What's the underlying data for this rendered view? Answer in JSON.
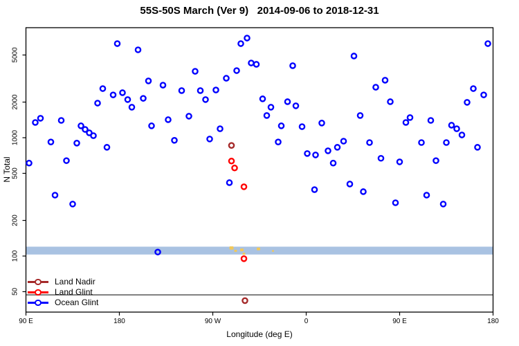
{
  "title": "55S-50S March (Ver 9)   2014-09-06 to 2018-12-31",
  "x_axis": {
    "title": "Longitude (deg E)",
    "tick_labels": [
      "90 E",
      "180",
      "90 W",
      "0",
      "90 E",
      "180"
    ],
    "tick_values_deg": [
      90,
      180,
      270,
      360,
      450,
      540
    ],
    "range_deg": [
      90,
      540
    ]
  },
  "y_axis": {
    "title": "N Total",
    "scale": "log",
    "tick_labels": [
      "50",
      "100",
      "200",
      "500",
      "1000",
      "2000",
      "5000"
    ],
    "tick_values": [
      50,
      100,
      200,
      500,
      1000,
      2000,
      5000
    ]
  },
  "legend": {
    "items": [
      {
        "label": "Land Nadir",
        "color": "#A52A2A"
      },
      {
        "label": "Land Glint",
        "color": "#FF0000"
      },
      {
        "label": "Ocean Glint",
        "color": "#0000FF"
      }
    ]
  },
  "chart_data": {
    "type": "scatter",
    "title": "55S-50S March (Ver 9)   2014-09-06 to 2018-12-31",
    "xlabel": "Longitude (deg E)",
    "ylabel": "N Total",
    "x_units": "degrees east along axis, 90 through 540 (wraps 180/90W/0/90E/180)",
    "y_log_scale": true,
    "band": {
      "n_range": [
        103,
        120
      ],
      "color": "#A9C2E2"
    },
    "threshold_line": {
      "n": 47,
      "color": "#7d7d7d"
    },
    "yellow_marks_color": "#F0C85C",
    "yellow_marks": [
      {
        "lon": 288,
        "n": 116,
        "size": 6
      },
      {
        "lon": 292,
        "n": 110,
        "size": 4
      },
      {
        "lon": 298,
        "n": 112,
        "size": 5
      },
      {
        "lon": 300,
        "n": 104,
        "size": 4
      },
      {
        "lon": 314,
        "n": 114,
        "size": 5
      },
      {
        "lon": 328,
        "n": 110,
        "size": 3
      }
    ],
    "series": [
      {
        "name": "Land Nadir",
        "color": "#A52A2A",
        "points": [
          [
            288,
            860
          ],
          [
            301,
            42
          ]
        ]
      },
      {
        "name": "Land Glint",
        "color": "#FF0000",
        "points": [
          [
            288,
            635
          ],
          [
            291,
            555
          ],
          [
            300,
            385
          ],
          [
            300,
            95
          ]
        ]
      },
      {
        "name": "Ocean Glint",
        "color": "#0000FF",
        "points": [
          [
            178,
            6240
          ],
          [
            198,
            5530
          ],
          [
            208,
            3020
          ],
          [
            222,
            2780
          ],
          [
            240,
            2500
          ],
          [
            164,
            2600
          ],
          [
            174,
            2300
          ],
          [
            183,
            2400
          ],
          [
            188,
            2100
          ],
          [
            192,
            1810
          ],
          [
            203,
            2150
          ],
          [
            159,
            1960
          ],
          [
            99,
            1345
          ],
          [
            104,
            1460
          ],
          [
            124,
            1400
          ],
          [
            143,
            1260
          ],
          [
            147,
            1175
          ],
          [
            151,
            1100
          ],
          [
            155,
            1040
          ],
          [
            211,
            1260
          ],
          [
            227,
            1420
          ],
          [
            114,
            920
          ],
          [
            139,
            900
          ],
          [
            168,
            830
          ],
          [
            233,
            950
          ],
          [
            129,
            640
          ],
          [
            93,
            610
          ],
          [
            303,
            6950
          ],
          [
            297,
            6240
          ],
          [
            307,
            4280
          ],
          [
            312,
            4170
          ],
          [
            347,
            4060
          ],
          [
            253,
            3640
          ],
          [
            293,
            3690
          ],
          [
            283,
            3180
          ],
          [
            258,
            2500
          ],
          [
            273,
            2530
          ],
          [
            263,
            2100
          ],
          [
            318,
            2130
          ],
          [
            326,
            1810
          ],
          [
            342,
            2015
          ],
          [
            350,
            1860
          ],
          [
            322,
            1540
          ],
          [
            247,
            1520
          ],
          [
            375,
            1330
          ],
          [
            336,
            1260
          ],
          [
            356,
            1240
          ],
          [
            277,
            1190
          ],
          [
            267,
            975
          ],
          [
            333,
            920
          ],
          [
            361,
            735
          ],
          [
            369,
            715
          ],
          [
            381,
            775
          ],
          [
            390,
            830
          ],
          [
            386,
            610
          ],
          [
            535,
            6240
          ],
          [
            406,
            4900
          ],
          [
            436,
            3060
          ],
          [
            427,
            2670
          ],
          [
            521,
            2600
          ],
          [
            531,
            2300
          ],
          [
            515,
            1990
          ],
          [
            441,
            2015
          ],
          [
            412,
            1540
          ],
          [
            460,
            1480
          ],
          [
            456,
            1345
          ],
          [
            480,
            1400
          ],
          [
            500,
            1275
          ],
          [
            505,
            1190
          ],
          [
            510,
            1055
          ],
          [
            396,
            935
          ],
          [
            421,
            910
          ],
          [
            471,
            910
          ],
          [
            495,
            910
          ],
          [
            525,
            830
          ],
          [
            432,
            670
          ],
          [
            450,
            625
          ],
          [
            485,
            640
          ],
          [
            118,
            327
          ],
          [
            135,
            275
          ],
          [
            217,
            108
          ],
          [
            286,
            417
          ],
          [
            368,
            364
          ],
          [
            402,
            406
          ],
          [
            415,
            350
          ],
          [
            446,
            282
          ],
          [
            476,
            327
          ],
          [
            492,
            275
          ]
        ]
      }
    ]
  }
}
